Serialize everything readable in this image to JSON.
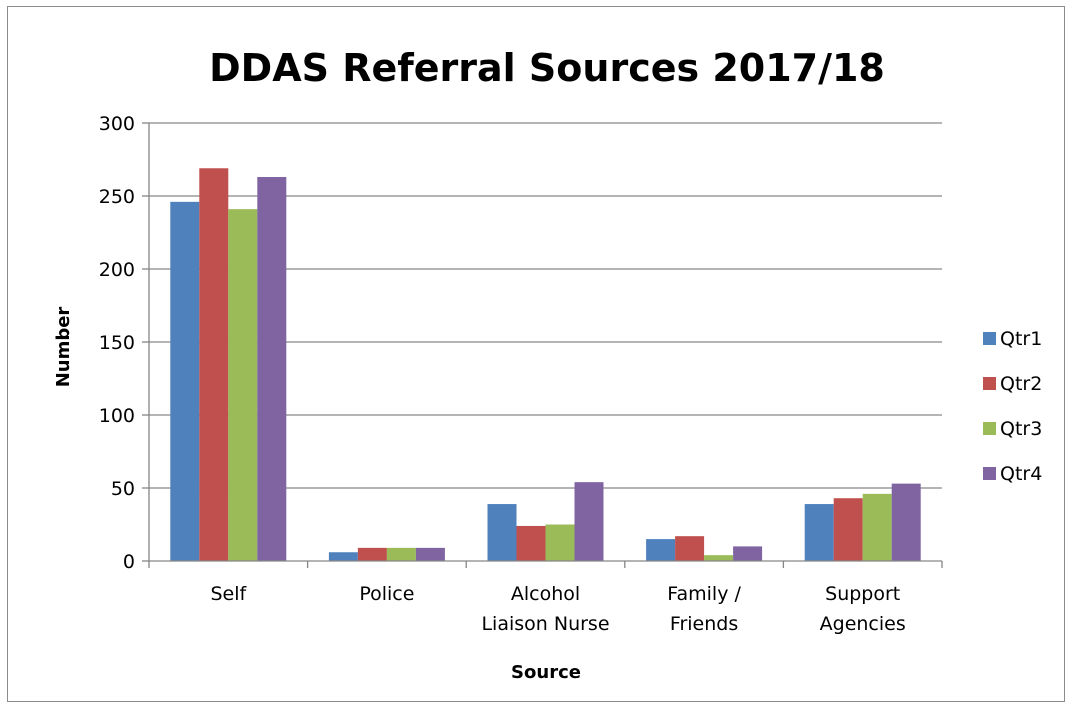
{
  "chart_data": {
    "type": "bar",
    "title": "DDAS Referral Sources 2017/18",
    "xlabel": "Source",
    "ylabel": "Number",
    "ylim": [
      0,
      300
    ],
    "yticks": [
      0,
      50,
      100,
      150,
      200,
      250,
      300
    ],
    "grid": true,
    "legend_position": "right",
    "categories": [
      [
        "Self"
      ],
      [
        "Police"
      ],
      [
        "Alcohol",
        "Liaison Nurse"
      ],
      [
        "Family /",
        "Friends"
      ],
      [
        "Support",
        "Agencies"
      ]
    ],
    "series": [
      {
        "name": "Qtr1",
        "color": "#4f81bd",
        "values": [
          246,
          6,
          39,
          15,
          39
        ]
      },
      {
        "name": "Qtr2",
        "color": "#c0504d",
        "values": [
          269,
          9,
          24,
          17,
          43
        ]
      },
      {
        "name": "Qtr3",
        "color": "#9bbb59",
        "values": [
          241,
          9,
          25,
          4,
          46
        ]
      },
      {
        "name": "Qtr4",
        "color": "#8064a2",
        "values": [
          263,
          9,
          54,
          10,
          53
        ]
      }
    ]
  }
}
